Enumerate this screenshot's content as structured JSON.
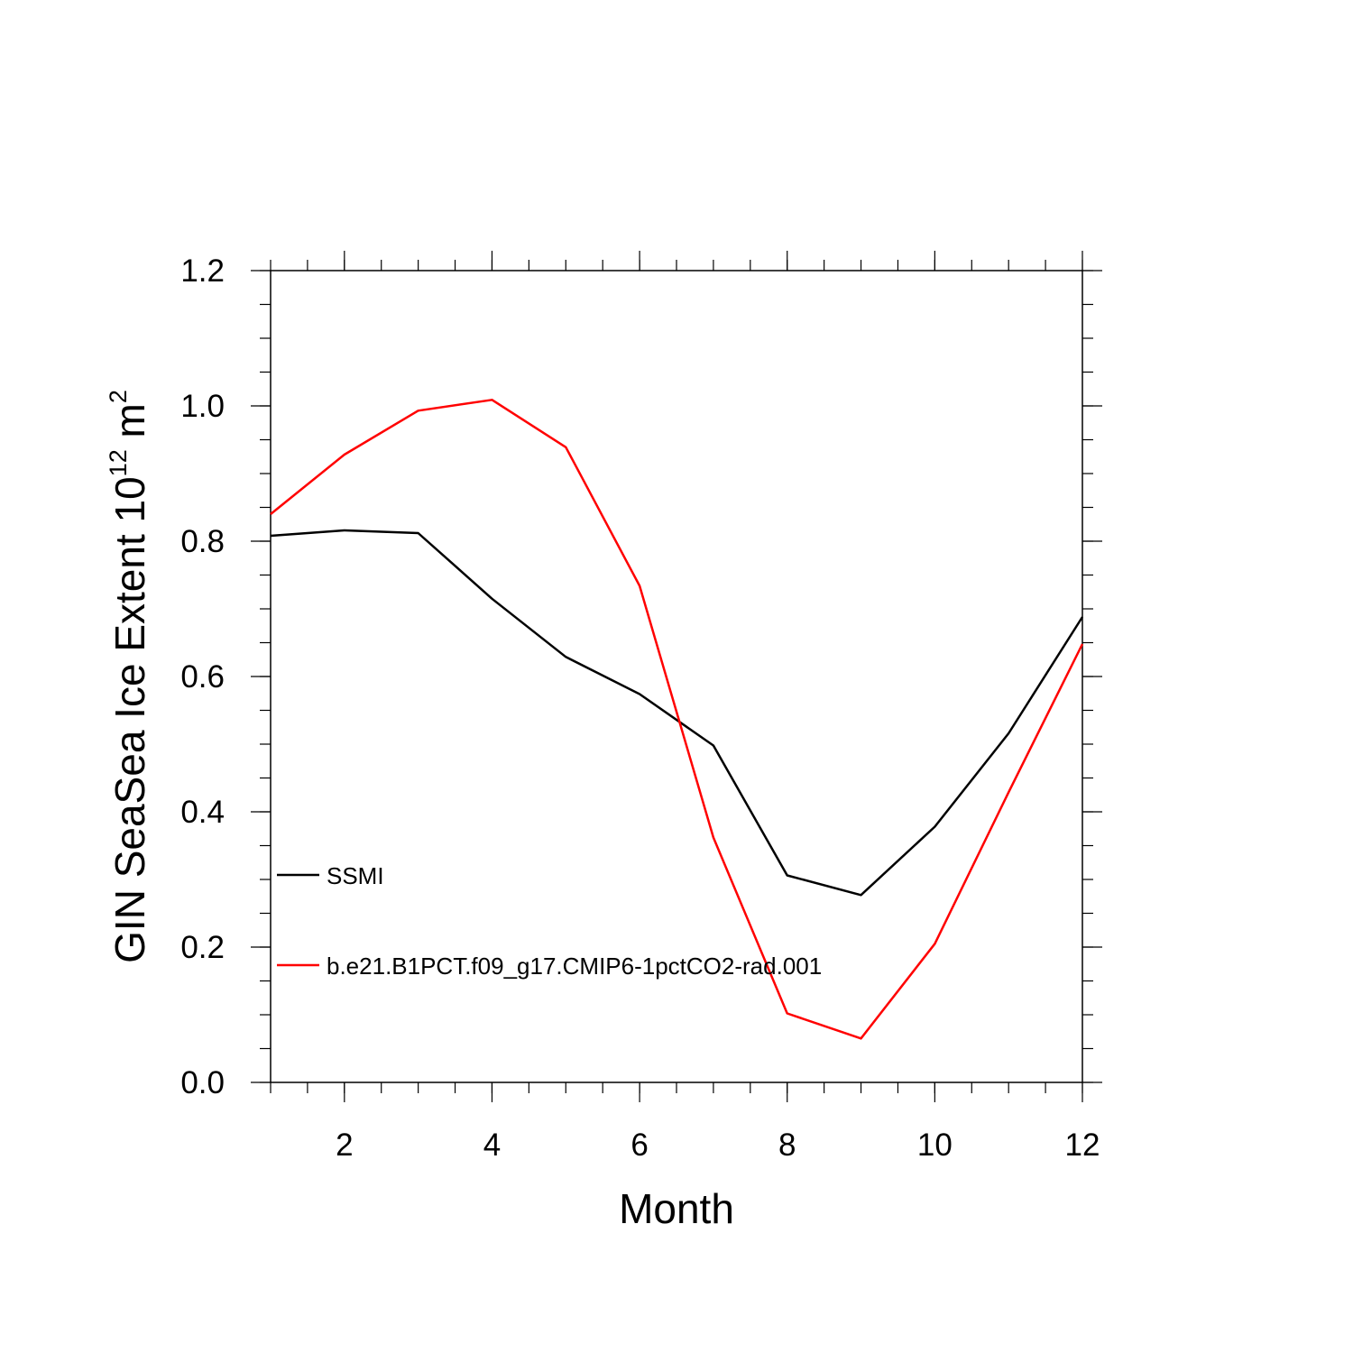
{
  "chart_data": {
    "type": "line",
    "xlabel": "Month",
    "ylabel_main": "GIN SeaSea Ice Extent 10",
    "ylabel_exp": "12",
    "ylabel_unit": " m",
    "ylabel_unit_exp": "2",
    "xlim": [
      1,
      12
    ],
    "ylim": [
      0,
      1.2
    ],
    "xticks": [
      2,
      4,
      6,
      8,
      10,
      12
    ],
    "xtick_labels": [
      "2",
      "4",
      "6",
      "8",
      "10",
      "12"
    ],
    "yticks": [
      0,
      0.2,
      0.4,
      0.6,
      0.8,
      1.0,
      1.2
    ],
    "ytick_labels": [
      "0.0",
      "0.2",
      "0.4",
      "0.6",
      "0.8",
      "1.0",
      "1.2"
    ],
    "grid": false,
    "legend_position": "bottom-left",
    "x": [
      1,
      2,
      3,
      4,
      5,
      6,
      7,
      8,
      9,
      10,
      11,
      12
    ],
    "series": [
      {
        "name": "SSMI",
        "color": "#000000",
        "values": [
          0.808,
          0.816,
          0.812,
          0.715,
          0.629,
          0.574,
          0.498,
          0.306,
          0.277,
          0.378,
          0.516,
          0.688
        ]
      },
      {
        "name": "b.e21.B1PCT.f09_g17.CMIP6-1pctCO2-rad.001",
        "color": "#ff0000",
        "values": [
          0.84,
          0.928,
          0.993,
          1.009,
          0.939,
          0.734,
          0.362,
          0.102,
          0.065,
          0.205,
          0.429,
          0.648
        ]
      }
    ]
  }
}
